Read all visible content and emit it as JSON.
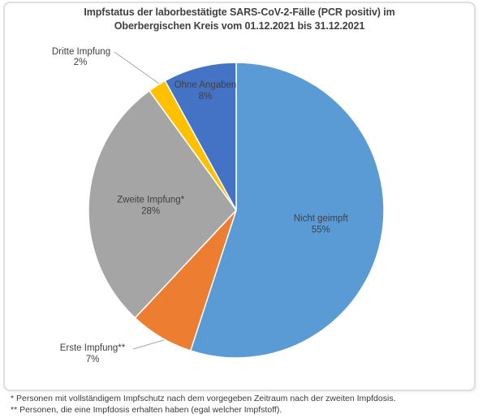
{
  "page": {
    "background_color": "#FFFFFF",
    "frame_border_color": "#DEDEDE"
  },
  "chart_data": {
    "type": "pie",
    "title": "Impfstatus der laborbestätigte SARS-CoV-2-Fälle (PCR positiv) im Oberbergischen Kreis vom 01.12.2021 bis 31.12.2021",
    "title_lines": [
      "Impfstatus der laborbestätigte SARS-CoV-2-Fälle (PCR positiv) im",
      "Oberbergischen Kreis vom 01.12.2021 bis 31.12.2021"
    ],
    "start_angle_deg": 0,
    "direction": "clockwise",
    "slice_border_color": "#FFFFFF",
    "label_color": "#404040",
    "leader_line_color": "#A6A6A6",
    "slices": [
      {
        "label": "Nicht geimpft",
        "pct": 55,
        "color": "#5B9BD5",
        "label_placement": "inside"
      },
      {
        "label": "Erste Impfung**",
        "pct": 7,
        "color": "#ED7D31",
        "label_placement": "outside"
      },
      {
        "label": "Zweite Impfung*",
        "pct": 28,
        "color": "#A5A5A5",
        "label_placement": "inside"
      },
      {
        "label": "Dritte Impfung",
        "pct": 2,
        "color": "#FFC000",
        "label_placement": "outside"
      },
      {
        "label": "Ohne Angaben",
        "pct": 8,
        "color": "#4472C4",
        "label_placement": "inside"
      }
    ],
    "footnotes": [
      "* Personen mit vollständigem Impfschutz nach dem vorgegeben Zeitraum nach der zweiten Impfdosis.",
      "** Personen, die eine Impfdosis erhalten haben (egal welcher Impfstoff)."
    ]
  }
}
